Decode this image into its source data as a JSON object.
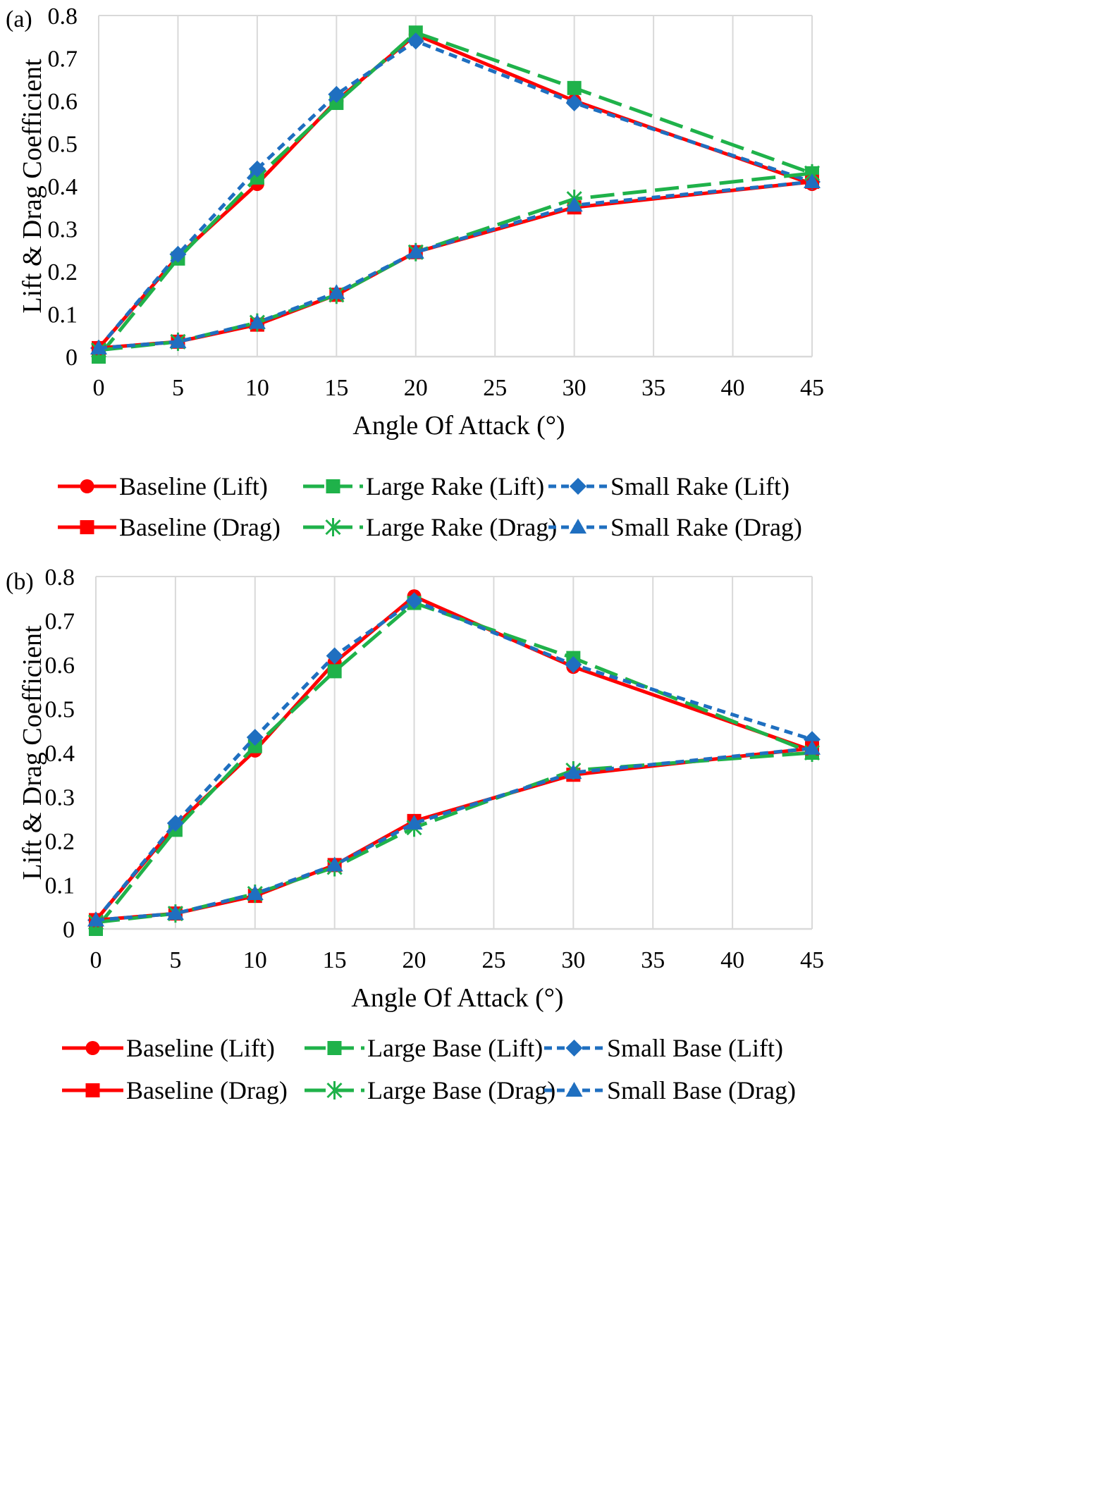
{
  "chart_data": [
    {
      "type": "line",
      "panel_label": "(a)",
      "xlabel": "Angle Of Attack (°)",
      "ylabel": "Lift & Drag Coefficient",
      "xlim": [
        0,
        45
      ],
      "ylim": [
        0,
        0.8
      ],
      "x_ticks": [
        "0",
        "5",
        "10",
        "15",
        "20",
        "25",
        "30",
        "35",
        "40",
        "45"
      ],
      "y_ticks": [
        "0",
        "0.1",
        "0.2",
        "0.3",
        "0.4",
        "0.5",
        "0.6",
        "0.7",
        "0.8"
      ],
      "grid": "vertical",
      "legend_position": "bottom",
      "x": [
        0,
        5,
        10,
        15,
        20,
        30,
        45
      ],
      "series": [
        {
          "name": "Baseline (Lift)",
          "values": [
            0.02,
            0.235,
            0.405,
            0.6,
            0.755,
            0.6,
            0.405
          ],
          "color": "#ff0000",
          "dash": "solid",
          "marker": "circle"
        },
        {
          "name": "Large Rake (Lift)",
          "values": [
            0.0,
            0.23,
            0.42,
            0.595,
            0.76,
            0.63,
            0.43
          ],
          "color": "#1fb24a",
          "dash": "long",
          "marker": "square"
        },
        {
          "name": "Small Rake (Lift)",
          "values": [
            0.02,
            0.24,
            0.44,
            0.615,
            0.74,
            0.595,
            0.41
          ],
          "color": "#1f6fc0",
          "dash": "short",
          "marker": "diamond"
        },
        {
          "name": "Baseline (Drag)",
          "values": [
            0.02,
            0.035,
            0.075,
            0.145,
            0.245,
            0.35,
            0.41
          ],
          "color": "#ff0000",
          "dash": "solid",
          "marker": "square"
        },
        {
          "name": "Large Rake (Drag)",
          "values": [
            0.015,
            0.035,
            0.08,
            0.145,
            0.245,
            0.37,
            0.43
          ],
          "color": "#1fb24a",
          "dash": "long",
          "marker": "star"
        },
        {
          "name": "Small Rake (Drag)",
          "values": [
            0.02,
            0.035,
            0.08,
            0.15,
            0.245,
            0.355,
            0.41
          ],
          "color": "#1f6fc0",
          "dash": "short",
          "marker": "triangle"
        }
      ]
    },
    {
      "type": "line",
      "panel_label": "(b)",
      "xlabel": "Angle Of Attack (°)",
      "ylabel": "Lift & Drag Coefficient",
      "xlim": [
        0,
        45
      ],
      "ylim": [
        0,
        0.8
      ],
      "x_ticks": [
        "0",
        "5",
        "10",
        "15",
        "20",
        "25",
        "30",
        "35",
        "40",
        "45"
      ],
      "y_ticks": [
        "0",
        "0.1",
        "0.2",
        "0.3",
        "0.4",
        "0.5",
        "0.6",
        "0.7",
        "0.8"
      ],
      "grid": "vertical",
      "legend_position": "bottom",
      "x": [
        0,
        5,
        10,
        15,
        20,
        30,
        45
      ],
      "series": [
        {
          "name": "Baseline (Lift)",
          "values": [
            0.02,
            0.235,
            0.405,
            0.605,
            0.755,
            0.595,
            0.405
          ],
          "color": "#ff0000",
          "dash": "solid",
          "marker": "circle"
        },
        {
          "name": "Large Base (Lift)",
          "values": [
            0.0,
            0.225,
            0.415,
            0.585,
            0.74,
            0.615,
            0.4
          ],
          "color": "#1fb24a",
          "dash": "long",
          "marker": "square"
        },
        {
          "name": "Small Base (Lift)",
          "values": [
            0.02,
            0.24,
            0.435,
            0.62,
            0.745,
            0.6,
            0.43
          ],
          "color": "#1f6fc0",
          "dash": "short",
          "marker": "diamond"
        },
        {
          "name": "Baseline (Drag)",
          "values": [
            0.02,
            0.035,
            0.075,
            0.145,
            0.245,
            0.35,
            0.41
          ],
          "color": "#ff0000",
          "dash": "solid",
          "marker": "square"
        },
        {
          "name": "Large Base (Drag)",
          "values": [
            0.015,
            0.035,
            0.08,
            0.14,
            0.23,
            0.36,
            0.4
          ],
          "color": "#1fb24a",
          "dash": "long",
          "marker": "star"
        },
        {
          "name": "Small Base (Drag)",
          "values": [
            0.02,
            0.035,
            0.08,
            0.145,
            0.24,
            0.355,
            0.41
          ],
          "color": "#1f6fc0",
          "dash": "short",
          "marker": "triangle"
        }
      ]
    }
  ]
}
